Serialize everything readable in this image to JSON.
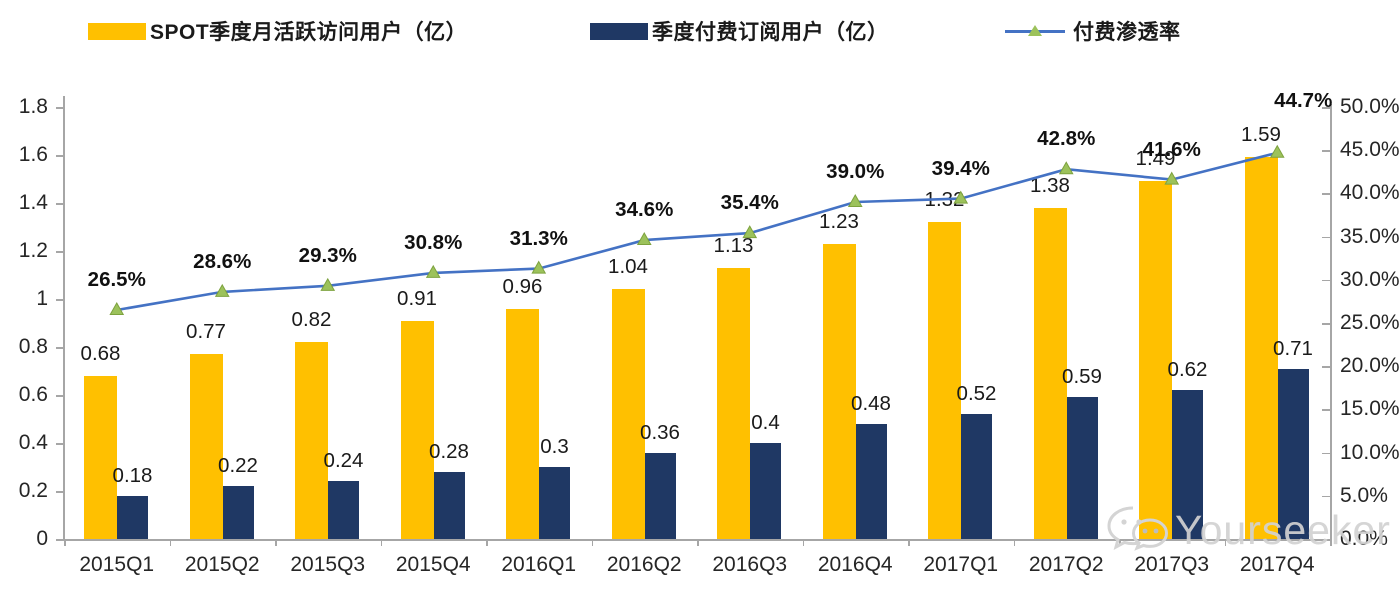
{
  "legend": {
    "items": [
      {
        "label": "SPOT季度月活跃访问用户（亿）",
        "color": "#FFC000",
        "type": "bar"
      },
      {
        "label": "季度付费订阅用户（亿）",
        "color": "#1F3864",
        "type": "bar"
      },
      {
        "label": "付费渗透率",
        "color": "#4472C4",
        "marker_color": "#9CC25B",
        "type": "line"
      }
    ]
  },
  "watermark": {
    "icon": "wechat-icon",
    "text": "Yourseeker"
  },
  "colors": {
    "mau_bar": "#FFC000",
    "paid_bar": "#1F3864",
    "line": "#4472C4",
    "marker_fill": "#9CC25B",
    "marker_edge": "#7DA23E",
    "axis": "#a6a6a6"
  },
  "chart_data": {
    "type": "bar",
    "subtype": "grouped-bars-with-line-combo",
    "categories": [
      "2015Q1",
      "2015Q2",
      "2015Q3",
      "2015Q4",
      "2016Q1",
      "2016Q2",
      "2016Q3",
      "2016Q4",
      "2017Q1",
      "2017Q2",
      "2017Q3",
      "2017Q4"
    ],
    "series": [
      {
        "name": "SPOT季度月活跃访问用户（亿）",
        "type": "bar",
        "axis": "left",
        "color": "#FFC000",
        "values": [
          0.68,
          0.77,
          0.82,
          0.91,
          0.96,
          1.04,
          1.13,
          1.23,
          1.32,
          1.38,
          1.49,
          1.59
        ],
        "labels": [
          "0.68",
          "0.77",
          "0.82",
          "0.91",
          "0.96",
          "1.04",
          "1.13",
          "1.23",
          "1.32",
          "1.38",
          "1.49",
          "1.59"
        ]
      },
      {
        "name": "季度付费订阅用户（亿）",
        "type": "bar",
        "axis": "left",
        "color": "#1F3864",
        "values": [
          0.18,
          0.22,
          0.24,
          0.28,
          0.3,
          0.36,
          0.4,
          0.48,
          0.52,
          0.59,
          0.62,
          0.71
        ],
        "labels": [
          "0.18",
          "0.22",
          "0.24",
          "0.28",
          "0.3",
          "0.36",
          "0.4",
          "0.48",
          "0.52",
          "0.59",
          "0.62",
          "0.71"
        ]
      },
      {
        "name": "付费渗透率",
        "type": "line",
        "axis": "right",
        "color": "#4472C4",
        "values": [
          26.5,
          28.6,
          29.3,
          30.8,
          31.3,
          34.6,
          35.4,
          39.0,
          39.4,
          42.8,
          41.6,
          44.7
        ],
        "labels": [
          "26.5%",
          "28.6%",
          "29.3%",
          "30.8%",
          "31.3%",
          "34.6%",
          "35.4%",
          "39.0%",
          "39.4%",
          "42.8%",
          "41.6%",
          "44.7%"
        ]
      }
    ],
    "left_axis": {
      "min": 0,
      "max": 1.8,
      "tick_labels": [
        "0",
        "0.2",
        "0.4",
        "0.6",
        "0.8",
        "1",
        "1.2",
        "1.4",
        "1.6",
        "1.8"
      ]
    },
    "right_axis": {
      "min": 0,
      "max": 50,
      "tick_labels": [
        "0.0%",
        "5.0%",
        "10.0%",
        "15.0%",
        "20.0%",
        "25.0%",
        "30.0%",
        "35.0%",
        "40.0%",
        "45.0%",
        "50.0%"
      ]
    },
    "grid": false,
    "legend_position": "top",
    "title": ""
  }
}
